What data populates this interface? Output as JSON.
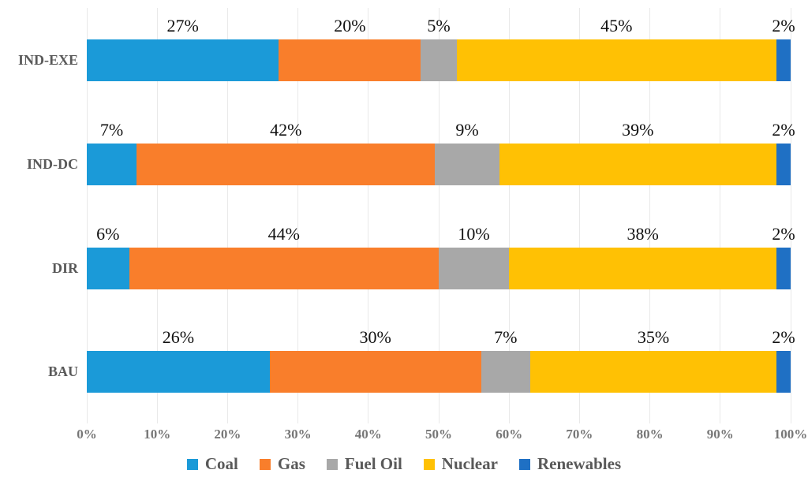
{
  "chart_data": {
    "type": "bar",
    "variant": "horizontal-100%-stacked",
    "title": "",
    "xlabel": "",
    "ylabel": "",
    "categories": [
      "IND-EXE",
      "IND-DC",
      "DIR",
      "BAU"
    ],
    "series": [
      {
        "name": "Coal",
        "color": "#1b9ad8",
        "values": [
          27,
          7,
          6,
          26
        ]
      },
      {
        "name": "Gas",
        "color": "#f97e2b",
        "values": [
          20,
          42,
          44,
          30
        ]
      },
      {
        "name": "Fuel Oil",
        "color": "#a8a8a8",
        "values": [
          5,
          9,
          10,
          7
        ]
      },
      {
        "name": "Nuclear",
        "color": "#ffc104",
        "values": [
          45,
          39,
          38,
          35
        ]
      },
      {
        "name": "Renewables",
        "color": "#1f70c4",
        "values": [
          2,
          2,
          2,
          2
        ]
      }
    ],
    "data_label_format": "percent",
    "x_axis": {
      "min": 0,
      "max": 100,
      "ticks": [
        "0%",
        "10%",
        "20%",
        "30%",
        "40%",
        "50%",
        "60%",
        "70%",
        "80%",
        "90%",
        "100%"
      ]
    },
    "grid": "vertical",
    "gridline_color": "#e9e9e9",
    "legend_position": "bottom",
    "text_colors": {
      "category_labels": "#595959",
      "axis_ticks": "#767676",
      "data_labels": "#111111",
      "legend_labels": "#595959"
    }
  }
}
